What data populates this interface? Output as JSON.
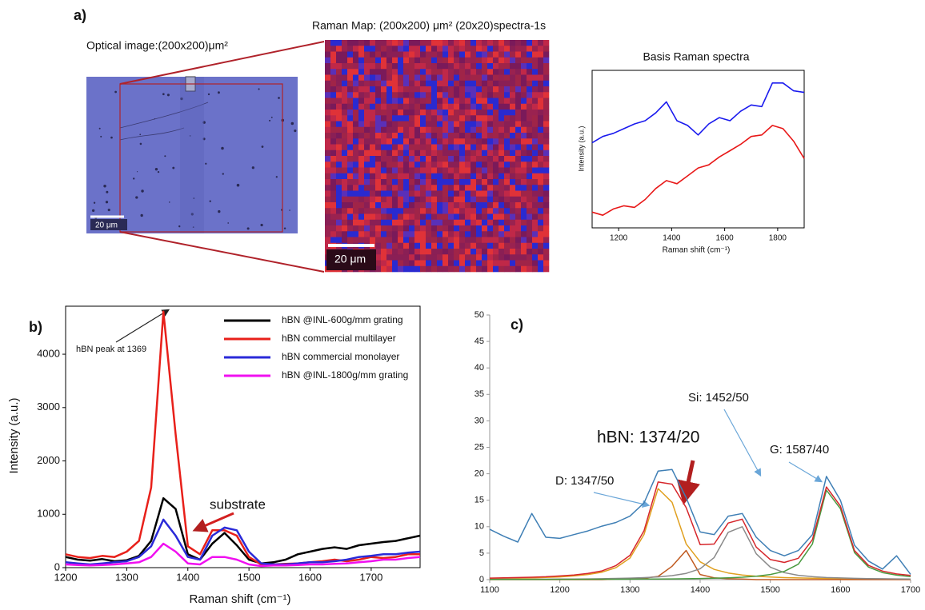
{
  "panels": {
    "a": "a)",
    "b": "b)",
    "c": "c)"
  },
  "optical": {
    "title": "Optical image:(200x200)μm²",
    "scale": "20 μm"
  },
  "map": {
    "title": "Raman Map: (200x200) μm² (20x20)spectra-1s",
    "scale": "20 μm"
  },
  "chart_data": [
    {
      "type": "line",
      "title": "Basis Raman spectra",
      "xlabel": "Raman shift (cm⁻¹)",
      "ylabel": "Intensity (a.u.)",
      "x": [
        1100,
        1140,
        1180,
        1220,
        1260,
        1300,
        1340,
        1380,
        1420,
        1460,
        1500,
        1540,
        1580,
        1620,
        1660,
        1700,
        1740,
        1780,
        1820,
        1860,
        1900
      ],
      "xlim": [
        1100,
        1900
      ],
      "xticks": [
        1200,
        1400,
        1600,
        1800
      ],
      "ylim": [
        0,
        10
      ],
      "series": [
        {
          "color": "#1a1aee",
          "values": [
            5.4,
            5.8,
            6.0,
            6.3,
            6.6,
            6.8,
            7.3,
            8.0,
            6.8,
            6.5,
            5.9,
            6.6,
            7.0,
            6.8,
            7.4,
            7.8,
            7.7,
            9.2,
            9.2,
            8.7,
            8.6
          ]
        },
        {
          "color": "#e81818",
          "values": [
            1.0,
            0.8,
            1.2,
            1.4,
            1.3,
            1.8,
            2.5,
            3.0,
            2.8,
            3.3,
            3.8,
            4.0,
            4.5,
            4.9,
            5.3,
            5.8,
            5.9,
            6.5,
            6.3,
            5.5,
            4.4
          ]
        }
      ]
    },
    {
      "type": "line",
      "xlabel": "Raman shift (cm⁻¹)",
      "ylabel": "Intensity (a.u.)",
      "legend": "upper right",
      "x": [
        1200,
        1220,
        1240,
        1260,
        1280,
        1300,
        1320,
        1340,
        1360,
        1380,
        1400,
        1420,
        1440,
        1460,
        1480,
        1500,
        1520,
        1540,
        1560,
        1580,
        1600,
        1620,
        1640,
        1660,
        1680,
        1700,
        1720,
        1740,
        1760,
        1780
      ],
      "xlim": [
        1200,
        1780
      ],
      "xticks": [
        1200,
        1300,
        1400,
        1500,
        1600,
        1700
      ],
      "ylim": [
        0,
        4900
      ],
      "yticks": [
        0,
        1000,
        2000,
        3000,
        4000
      ],
      "annotations": [
        "hBN peak at 1369",
        "substrate"
      ],
      "series": [
        {
          "name": "hBN @INL-600g/mm grating",
          "color": "#000000",
          "values": [
            200,
            150,
            130,
            160,
            120,
            140,
            220,
            500,
            1300,
            1100,
            250,
            150,
            450,
            650,
            420,
            150,
            80,
            100,
            150,
            250,
            300,
            350,
            380,
            350,
            420,
            450,
            480,
            500,
            550,
            600
          ]
        },
        {
          "name": "hBN commercial multilayer",
          "color": "#e8201a",
          "values": [
            250,
            200,
            180,
            220,
            200,
            300,
            500,
            1500,
            4800,
            2500,
            400,
            250,
            700,
            700,
            600,
            200,
            60,
            60,
            70,
            80,
            100,
            120,
            150,
            120,
            150,
            200,
            180,
            200,
            250,
            250
          ]
        },
        {
          "name": "hBN commercial monolayer",
          "color": "#2a2ad8",
          "values": [
            100,
            80,
            60,
            80,
            100,
            120,
            200,
            400,
            900,
            600,
            200,
            150,
            600,
            750,
            700,
            300,
            80,
            60,
            60,
            80,
            100,
            100,
            120,
            150,
            200,
            220,
            250,
            250,
            280,
            300
          ]
        },
        {
          "name": "hBN @INL-1800g/mm grating",
          "color": "#f010f0",
          "values": [
            60,
            50,
            40,
            50,
            60,
            80,
            100,
            200,
            450,
            300,
            80,
            60,
            200,
            200,
            150,
            60,
            30,
            40,
            40,
            50,
            60,
            60,
            70,
            80,
            100,
            120,
            150,
            150,
            180,
            200
          ]
        }
      ]
    },
    {
      "type": "line",
      "x": [
        1100,
        1120,
        1140,
        1160,
        1180,
        1200,
        1220,
        1240,
        1260,
        1280,
        1300,
        1320,
        1340,
        1360,
        1380,
        1400,
        1420,
        1440,
        1460,
        1480,
        1500,
        1520,
        1540,
        1560,
        1580,
        1600,
        1620,
        1640,
        1660,
        1680,
        1700
      ],
      "xlim": [
        1100,
        1700
      ],
      "xticks": [
        1100,
        1200,
        1300,
        1400,
        1500,
        1600,
        1700
      ],
      "ylim": [
        0,
        50
      ],
      "yticks": [
        0,
        5,
        10,
        15,
        20,
        25,
        30,
        35,
        40,
        45,
        50
      ],
      "annotations": [
        "D: 1347/50",
        "hBN: 1374/20",
        "Si: 1452/50",
        "G: 1587/40"
      ],
      "series": [
        {
          "color": "#3f7fb5",
          "values": [
            9.5,
            8.2,
            7.1,
            12.5,
            8.0,
            7.8,
            8.5,
            9.2,
            10.1,
            10.8,
            12.0,
            14.5,
            20.5,
            20.8,
            15.5,
            9.0,
            8.5,
            12.0,
            12.5,
            8.0,
            5.5,
            4.5,
            5.5,
            8.5,
            19.5,
            15.0,
            6.5,
            3.5,
            2.0,
            4.5,
            1.0
          ]
        },
        {
          "color": "#e0a020",
          "values": [
            0.19,
            0.22,
            0.27,
            0.32,
            0.41,
            0.52,
            0.69,
            0.96,
            1.41,
            2.26,
            4.08,
            8.53,
            17.2,
            14.6,
            6.75,
            3.37,
            1.94,
            1.25,
            0.86,
            0.63,
            0.48,
            0.38,
            0.31,
            0.25,
            0.21,
            0.18,
            0.15,
            0.13,
            0.12,
            0.1,
            0.09
          ]
        },
        {
          "color": "#c05a20",
          "values": [
            0,
            0,
            0,
            0,
            0,
            0,
            0,
            0,
            0,
            0.1,
            0.13,
            0.25,
            0.6,
            2.53,
            5.51,
            0.97,
            0.34,
            0.17,
            0.1,
            0,
            0,
            0,
            0,
            0,
            0,
            0,
            0,
            0,
            0,
            0,
            0
          ]
        },
        {
          "color": "#8a8a8a",
          "values": [
            0.06,
            0.07,
            0.07,
            0.08,
            0.09,
            0.11,
            0.12,
            0.14,
            0.17,
            0.22,
            0.29,
            0.38,
            0.52,
            0.76,
            1.18,
            2.06,
            4.17,
            8.94,
            10.0,
            4.88,
            2.35,
            1.31,
            0.82,
            0.56,
            0.4,
            0.31,
            0.24,
            0.19,
            0.16,
            0.13,
            0.11
          ]
        },
        {
          "color": "#4a9a40",
          "values": [
            0.04,
            0.04,
            0.05,
            0.05,
            0.05,
            0.06,
            0.06,
            0.07,
            0.07,
            0.08,
            0.09,
            0.1,
            0.12,
            0.14,
            0.17,
            0.21,
            0.27,
            0.34,
            0.46,
            0.64,
            0.96,
            1.56,
            2.91,
            6.73,
            16.9,
            13.4,
            5.1,
            2.37,
            1.33,
            0.84,
            0.58
          ]
        },
        {
          "color": "#d6262b",
          "values": [
            0.29,
            0.33,
            0.39,
            0.45,
            0.55,
            0.69,
            0.87,
            1.17,
            1.65,
            2.66,
            4.59,
            9.26,
            18.44,
            18.03,
            13.61,
            6.61,
            6.72,
            10.7,
            11.42,
            6.15,
            3.79,
            3.25,
            4.04,
            7.54,
            17.51,
            13.89,
            5.49,
            2.69,
            1.61,
            1.07,
            0.78
          ]
        }
      ]
    }
  ]
}
